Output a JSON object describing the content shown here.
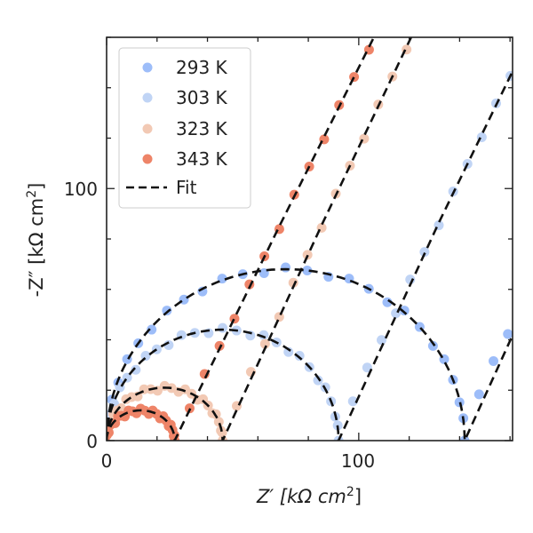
{
  "chart_data": {
    "type": "scatter",
    "title": "",
    "xlabel": "Z′ [kΩ cm²]",
    "xlabel_main": "Z′ [kΩ cm",
    "xlabel_sup": "2",
    "xlabel_end": "]",
    "ylabel_main": "-Z″ [kΩ cm",
    "ylabel_sup": "2",
    "ylabel_end": "]",
    "ylabel": "-Z″ [kΩ cm²]",
    "xlim": [
      0,
      161
    ],
    "ylim": [
      0,
      160
    ],
    "x_ticks": [
      "0",
      "100"
    ],
    "y_ticks": [
      "0",
      "100"
    ],
    "legend_position": "top-left",
    "fit_label": "Fit",
    "series": [
      {
        "name": "293 K",
        "color": "#9dbdf9",
        "Rct": 142,
        "peak": 68,
        "tail_start": [
          142,
          8
        ],
        "tail_slope": 2.0
      },
      {
        "name": "303 K",
        "color": "#c0d4f5",
        "Rct": 92,
        "peak": 44,
        "tail_start": [
          92,
          5
        ],
        "tail_slope": 2.05
      },
      {
        "name": "323 K",
        "color": "#f2c9b4",
        "Rct": 46,
        "peak": 21,
        "tail_start": [
          46,
          3
        ],
        "tail_slope": 2.1
      },
      {
        "name": "343 K",
        "color": "#ee8468",
        "Rct": 27,
        "peak": 12,
        "tail_start": [
          27,
          2
        ],
        "tail_slope": 2.0
      }
    ]
  }
}
